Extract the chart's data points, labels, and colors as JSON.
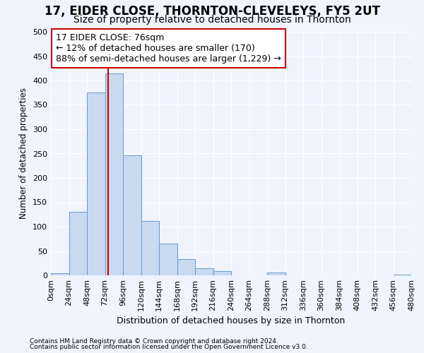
{
  "title_line1": "17, EIDER CLOSE, THORNTON-CLEVELEYS, FY5 2UT",
  "title_line2": "Size of property relative to detached houses in Thornton",
  "xlabel": "Distribution of detached houses by size in Thornton",
  "ylabel": "Number of detached properties",
  "footnote1": "Contains HM Land Registry data © Crown copyright and database right 2024.",
  "footnote2": "Contains public sector information licensed under the Open Government Licence v3.0.",
  "bin_edges": [
    0,
    24,
    48,
    72,
    96,
    120,
    144,
    168,
    192,
    216,
    240,
    264,
    288,
    312,
    336,
    360,
    384,
    408,
    432,
    456,
    480
  ],
  "bar_heights": [
    5,
    130,
    375,
    415,
    247,
    112,
    65,
    33,
    15,
    8,
    0,
    0,
    6,
    0,
    0,
    0,
    0,
    0,
    0,
    2
  ],
  "bar_color": "#c8d9f0",
  "bar_edge_color": "#6699cc",
  "vline_x": 76,
  "vline_color": "#cc0000",
  "annotation_text": "17 EIDER CLOSE: 76sqm\n← 12% of detached houses are smaller (170)\n88% of semi-detached houses are larger (1,229) →",
  "annotation_box_color": "#ffffff",
  "annotation_box_edge": "#cc0000",
  "ylim": [
    0,
    500
  ],
  "xlim": [
    0,
    480
  ],
  "tick_labels": [
    "0sqm",
    "24sqm",
    "48sqm",
    "72sqm",
    "96sqm",
    "120sqm",
    "144sqm",
    "168sqm",
    "192sqm",
    "216sqm",
    "240sqm",
    "264sqm",
    "288sqm",
    "312sqm",
    "336sqm",
    "360sqm",
    "384sqm",
    "408sqm",
    "432sqm",
    "456sqm",
    "480sqm"
  ],
  "bg_color": "#f0f4ff",
  "grid_color": "#ffffff",
  "title_fontsize": 12,
  "subtitle_fontsize": 10,
  "annotation_fontsize": 9
}
